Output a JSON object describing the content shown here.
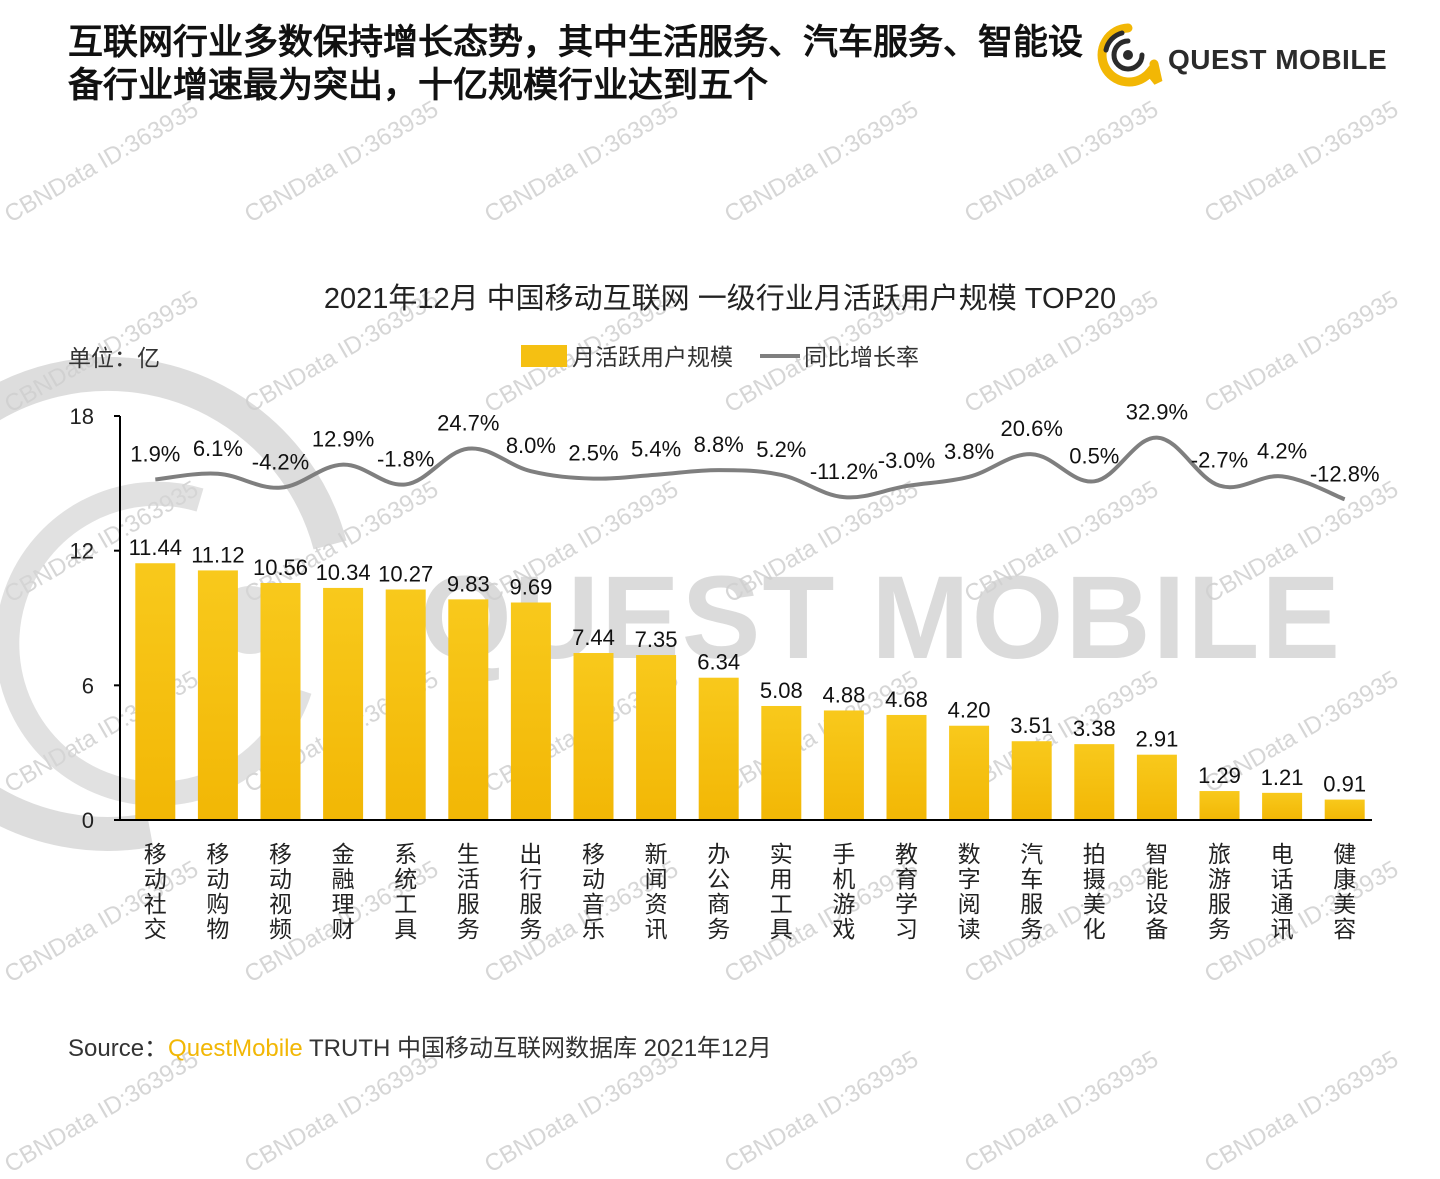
{
  "headline": "互联网行业多数保持增长态势，其中生活服务、汽车服务、智能设备行业增速最为突出，十亿规模行业达到五个",
  "logo": {
    "text": "QUEST MOBILE",
    "icon": "quest-mobile-logo-icon"
  },
  "watermark": {
    "text": "CBNData ID:363935",
    "big_text": "QUEST MOBILE"
  },
  "colors": {
    "bar_top": "#f8c91c",
    "bar_bottom": "#f2b705",
    "line": "#7f7f7f",
    "axis": "#000000",
    "logo_yellow": "#f2b705"
  },
  "chart_data": {
    "type": "bar",
    "title": "2021年12月 中国移动互联网 一级行业月活跃用户规模 TOP20",
    "unit_label": "单位：亿",
    "ylim": [
      0,
      18
    ],
    "yticks": [
      "0",
      "6",
      "12",
      "18"
    ],
    "grid": false,
    "legend_position": "top-center",
    "categories": [
      "移动社交",
      "移动购物",
      "移动视频",
      "金融理财",
      "系统工具",
      "生活服务",
      "出行服务",
      "移动音乐",
      "新闻资讯",
      "办公商务",
      "实用工具",
      "手机游戏",
      "教育学习",
      "数字阅读",
      "汽车服务",
      "拍摄美化",
      "智能设备",
      "旅游服务",
      "电话通讯",
      "健康美容"
    ],
    "series": [
      {
        "name": "月活跃用户规模",
        "type": "bar",
        "values": [
          11.44,
          11.12,
          10.56,
          10.34,
          10.27,
          9.83,
          9.69,
          7.44,
          7.35,
          6.34,
          5.08,
          4.88,
          4.68,
          4.2,
          3.51,
          3.38,
          2.91,
          1.29,
          1.21,
          0.91
        ],
        "labels": [
          "11.44",
          "11.12",
          "10.56",
          "10.34",
          "10.27",
          "9.83",
          "9.69",
          "7.44",
          "7.35",
          "6.34",
          "5.08",
          "4.88",
          "4.68",
          "4.20",
          "3.51",
          "3.38",
          "2.91",
          "1.29",
          "1.21",
          "0.91"
        ]
      },
      {
        "name": "同比增长率",
        "type": "line",
        "unit": "%",
        "values": [
          1.9,
          6.1,
          -4.2,
          12.9,
          -1.8,
          24.7,
          8.0,
          2.5,
          5.4,
          8.8,
          5.2,
          -11.2,
          -3.0,
          3.8,
          20.6,
          0.5,
          32.9,
          -2.7,
          4.2,
          -12.8
        ],
        "labels": [
          "1.9%",
          "6.1%",
          "-4.2%",
          "12.9%",
          "-1.8%",
          "24.7%",
          "8.0%",
          "2.5%",
          "5.4%",
          "8.8%",
          "5.2%",
          "-11.2%",
          "-3.0%",
          "3.8%",
          "20.6%",
          "0.5%",
          "32.9%",
          "-2.7%",
          "4.2%",
          "-12.8%"
        ]
      }
    ]
  },
  "source": {
    "prefix": "Source：",
    "brand": "QuestMobile",
    "rest": " TRUTH 中国移动互联网数据库 2021年12月"
  }
}
